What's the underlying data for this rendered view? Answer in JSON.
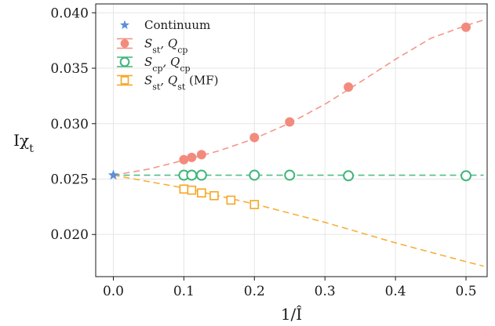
{
  "chart_data": {
    "type": "scatter",
    "xlabel": "1/Î",
    "ylabel": "Iχ_t",
    "xlim": [
      -0.025,
      0.53
    ],
    "ylim": [
      0.0162,
      0.0408
    ],
    "xticks": [
      "0.0",
      "0.1",
      "0.2",
      "0.3",
      "0.4",
      "0.5"
    ],
    "yticks": [
      "0.020",
      "0.025",
      "0.030",
      "0.035",
      "0.040"
    ],
    "grid": true,
    "legend_position": "top-left",
    "series": [
      {
        "name": "Continuum",
        "label_main": "Continuum",
        "label_sub1": "",
        "label_mid": "",
        "label_sub2": "",
        "label_suffix": "",
        "marker": "star",
        "color": "#5b8fd9",
        "x": [
          0.0
        ],
        "y": [
          0.02535
        ]
      },
      {
        "name": "S_st, Q_cp",
        "label_main": "S",
        "label_sub1": "st",
        "label_mid": ", Q",
        "label_sub2": "cp",
        "label_suffix": "",
        "marker": "circle-filled",
        "color": "#f28b7e",
        "x": [
          0.1,
          0.1111,
          0.125,
          0.2,
          0.25,
          0.3333,
          0.5
        ],
        "y": [
          0.02675,
          0.02695,
          0.0272,
          0.02875,
          0.03015,
          0.0333,
          0.0387
        ],
        "fit": {
          "x": [
            0.0,
            0.05,
            0.1,
            0.15,
            0.2,
            0.25,
            0.3,
            0.35,
            0.4,
            0.45,
            0.5,
            0.525
          ],
          "y": [
            0.02535,
            0.0259,
            0.0267,
            0.02755,
            0.02865,
            0.03005,
            0.03175,
            0.03375,
            0.0358,
            0.0377,
            0.03885,
            0.03935
          ]
        }
      },
      {
        "name": "S_cp, Q_cp",
        "label_main": "S",
        "label_sub1": "cp",
        "label_mid": ", Q",
        "label_sub2": "cp",
        "label_suffix": "",
        "marker": "circle-open",
        "color": "#3fb57a",
        "x": [
          0.1,
          0.1111,
          0.125,
          0.2,
          0.25,
          0.3333,
          0.5
        ],
        "y": [
          0.02535,
          0.02535,
          0.02535,
          0.02535,
          0.02535,
          0.0253,
          0.0253
        ],
        "fit": {
          "x": [
            0.0,
            0.525
          ],
          "y": [
            0.02535,
            0.02535
          ]
        }
      },
      {
        "name": "S_st, Q_st (MF)",
        "label_main": "S",
        "label_sub1": "st",
        "label_mid": ", Q",
        "label_sub2": "st",
        "label_suffix": " (MF)",
        "marker": "square-open",
        "color": "#f5a623",
        "x": [
          0.1,
          0.1111,
          0.125,
          0.1429,
          0.1667,
          0.2
        ],
        "y": [
          0.0241,
          0.024,
          0.02375,
          0.0235,
          0.0231,
          0.0227
        ],
        "fit": {
          "x": [
            0.0,
            0.1,
            0.2,
            0.3,
            0.4,
            0.5,
            0.525
          ],
          "y": [
            0.02535,
            0.0242,
            0.02275,
            0.0211,
            0.01925,
            0.01755,
            0.01715
          ]
        }
      }
    ]
  }
}
